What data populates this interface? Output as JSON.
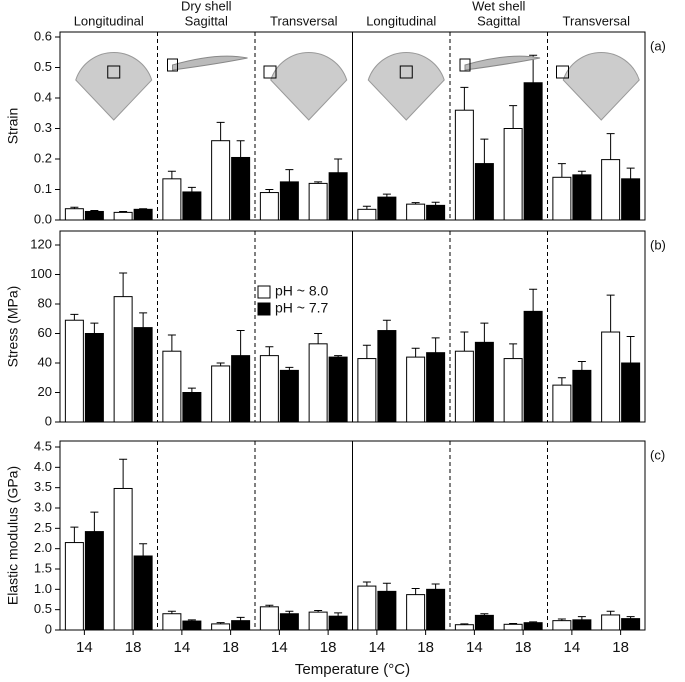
{
  "chart_data": [
    {
      "type": "bar",
      "panel_label": "(a)",
      "y_label": "Strain",
      "groups": [
        "Longitudinal",
        "Sagittal",
        "Transversal",
        "Longitudinal",
        "Sagittal",
        "Transversal"
      ],
      "supergroups": [
        "Dry shell",
        "Wet shell"
      ],
      "ylim": [
        0,
        0.6
      ],
      "yticks": [
        {
          "value": 0,
          "label": "0.0"
        },
        0.1,
        0.2,
        0.3,
        0.4,
        0.5,
        0.6
      ],
      "series": [
        {
          "color": "#ffffff",
          "values": [
            0.037,
            0.025,
            0.135,
            0.26,
            0.09,
            0.12,
            0.035,
            0.052,
            0.36,
            0.3,
            0.14,
            0.198
          ],
          "errors": [
            0.005,
            0.003,
            0.025,
            0.06,
            0.01,
            0.005,
            0.01,
            0.005,
            0.075,
            0.075,
            0.045,
            0.085
          ]
        },
        {
          "color": "#000000",
          "values": [
            0.028,
            0.035,
            0.092,
            0.205,
            0.125,
            0.155,
            0.075,
            0.048,
            0.185,
            0.45,
            0.148,
            0.135
          ],
          "errors": [
            0.003,
            0.002,
            0.015,
            0.055,
            0.04,
            0.045,
            0.01,
            0.01,
            0.08,
            0.09,
            0.012,
            0.035
          ]
        }
      ]
    },
    {
      "type": "bar",
      "panel_label": "(b)",
      "y_label": "Stress (MPa)",
      "ylim": [
        0,
        120
      ],
      "yticks": [
        0,
        20,
        40,
        60,
        80,
        100,
        120
      ],
      "series": [
        {
          "name": "pH ~ 8.0",
          "color": "#ffffff",
          "values": [
            69,
            85,
            48,
            38,
            45,
            53,
            43,
            44,
            48,
            43,
            25,
            61
          ],
          "errors": [
            4,
            16,
            11,
            2,
            6,
            7,
            9,
            6,
            13,
            10,
            5,
            25
          ]
        },
        {
          "name": "pH ~ 7.7",
          "color": "#000000",
          "values": [
            60,
            64,
            20,
            45,
            35,
            44,
            62,
            47,
            54,
            75,
            35,
            40
          ],
          "errors": [
            7,
            10,
            3,
            17,
            2,
            1,
            7,
            10,
            13,
            15,
            6,
            18
          ]
        }
      ]
    },
    {
      "type": "bar",
      "panel_label": "(c)",
      "y_label": "Elastic modulus (GPa)",
      "x_label": "Temperature (°C)",
      "categories": [
        "14",
        "18",
        "14",
        "18",
        "14",
        "18",
        "14",
        "18",
        "14",
        "18",
        "14",
        "18"
      ],
      "ylim": [
        0,
        4.5
      ],
      "yticks": [
        0,
        0.5,
        {
          "value": 1,
          "label": "1.0"
        },
        1.5,
        {
          "value": 2,
          "label": "2.0"
        },
        2.5,
        {
          "value": 3,
          "label": "3.0"
        },
        3.5,
        {
          "value": 4,
          "label": "4.0"
        },
        4.5
      ],
      "series": [
        {
          "color": "#ffffff",
          "values": [
            2.15,
            3.48,
            0.4,
            0.15,
            0.57,
            0.44,
            1.08,
            0.87,
            0.13,
            0.14,
            0.23,
            0.37
          ],
          "errors": [
            0.38,
            0.72,
            0.06,
            0.03,
            0.04,
            0.04,
            0.1,
            0.15,
            0.02,
            0.02,
            0.04,
            0.09
          ]
        },
        {
          "color": "#000000",
          "values": [
            2.42,
            1.82,
            0.22,
            0.23,
            0.4,
            0.34,
            0.95,
            1.0,
            0.36,
            0.18,
            0.25,
            0.28
          ],
          "errors": [
            0.48,
            0.3,
            0.03,
            0.08,
            0.06,
            0.08,
            0.2,
            0.13,
            0.04,
            0.02,
            0.08,
            0.05
          ]
        }
      ]
    }
  ]
}
